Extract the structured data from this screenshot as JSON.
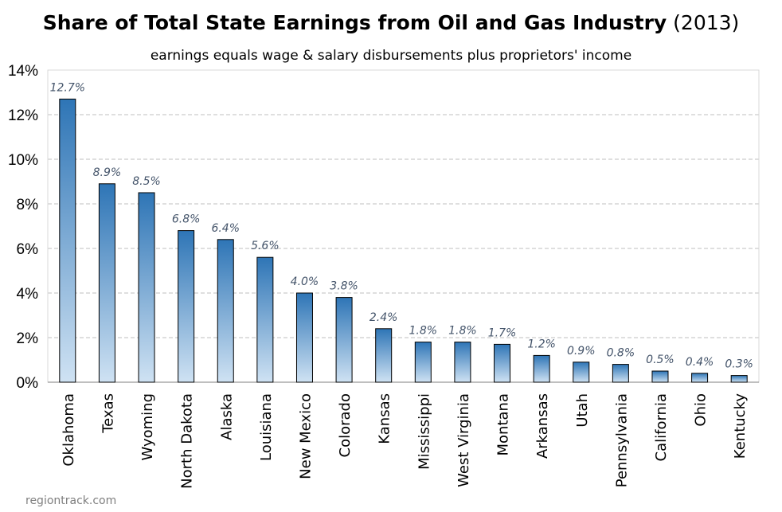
{
  "title": "Share of Total State Earnings from Oil and Gas Industry",
  "title_suffix": "(2013)",
  "subtitle": "earnings equals wage & salary disbursements plus proprietors' income",
  "source": "regiontrack.com",
  "colors": {
    "bar_top": "#2e75b6",
    "bar_bottom": "#cfe2f3",
    "bar_border": "#000000",
    "label": "#44546a",
    "grid": "#bfbfbf"
  },
  "chart_data": {
    "type": "bar",
    "categories": [
      "Oklahoma",
      "Texas",
      "Wyoming",
      "North Dakota",
      "Alaska",
      "Louisiana",
      "New Mexico",
      "Colorado",
      "Kansas",
      "Mississippi",
      "West Virginia",
      "Montana",
      "Arkansas",
      "Utah",
      "Pennsylvania",
      "California",
      "Ohio",
      "Kentucky"
    ],
    "values": [
      12.7,
      8.9,
      8.5,
      6.8,
      6.4,
      5.6,
      4.0,
      3.8,
      2.4,
      1.8,
      1.8,
      1.7,
      1.2,
      0.9,
      0.8,
      0.5,
      0.4,
      0.3
    ],
    "data_labels": [
      "12.7%",
      "8.9%",
      "8.5%",
      "6.8%",
      "6.4%",
      "5.6%",
      "4.0%",
      "3.8%",
      "2.4%",
      "1.8%",
      "1.8%",
      "1.7%",
      "1.2%",
      "0.9%",
      "0.8%",
      "0.5%",
      "0.4%",
      "0.3%"
    ],
    "title": "Share of Total State Earnings from Oil and Gas Industry (2013)",
    "subtitle": "earnings equals wage & salary disbursements plus proprietors' income",
    "xlabel": "",
    "ylabel": "",
    "ylim": [
      0,
      14
    ],
    "y_ticks": [
      0,
      2,
      4,
      6,
      8,
      10,
      12,
      14
    ],
    "y_tick_labels": [
      "0%",
      "2%",
      "4%",
      "6%",
      "8%",
      "10%",
      "12%",
      "14%"
    ],
    "grid": true,
    "legend": "none"
  }
}
